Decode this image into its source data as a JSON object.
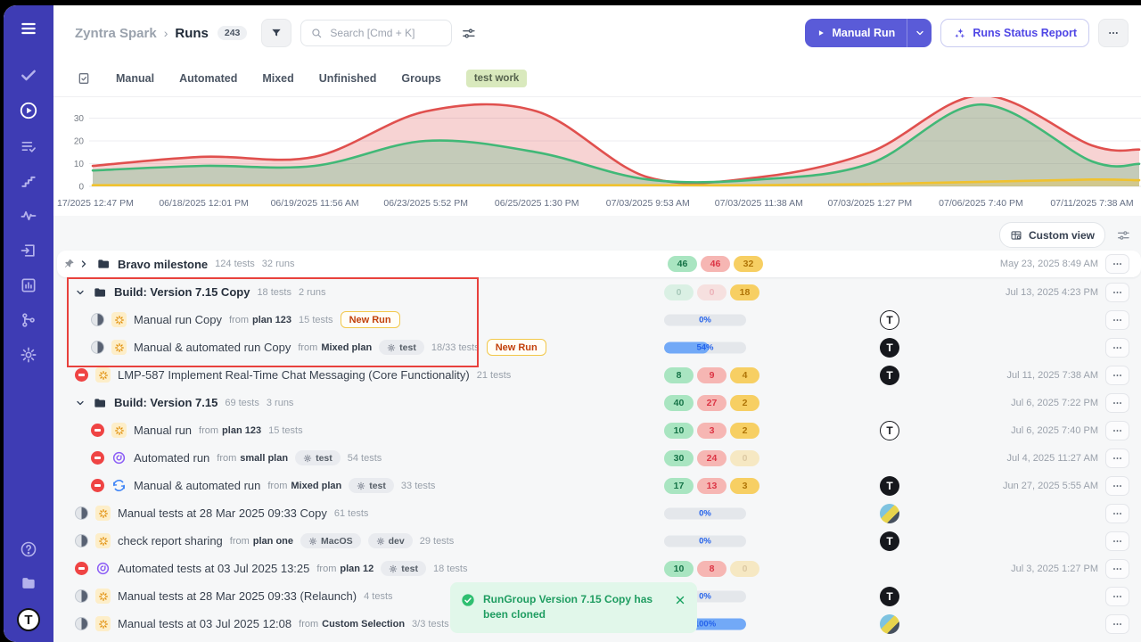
{
  "labels": {
    "from": "from"
  },
  "colors": {
    "sidebar": "#3e3cb4",
    "accent": "#5a5bd8",
    "annotation_red": "#e8413c",
    "toast_green": "#1f9d61",
    "badge_passed_bg": "#a9e5c1",
    "badge_failed_bg": "#f6b6b3",
    "badge_skipped_bg": "#f7cf63",
    "progress_blue": "#72a9f7"
  },
  "sidebar": {
    "top_icon": "menu",
    "nav_icons": [
      "check",
      "play-circle",
      "list-check",
      "steps",
      "pulse",
      "import",
      "chart",
      "branch",
      "gear"
    ],
    "active_icon": "play-circle",
    "bottom_icons": [
      "help",
      "docs"
    ],
    "logo_letter": "T"
  },
  "header": {
    "project": "Zyntra Spark",
    "separator": "›",
    "page_title": "Runs",
    "count": "243",
    "search_placeholder": "Search [Cmd + K]",
    "manual_run_label": "Manual Run",
    "report_label": "Runs Status Report"
  },
  "tabs": {
    "items": [
      "Manual",
      "Automated",
      "Mixed",
      "Unfinished",
      "Groups"
    ],
    "active_chip": "test work"
  },
  "toolbar": {
    "custom_view_label": "Custom view"
  },
  "chart_data": {
    "type": "area",
    "x": [
      "17/2025 12:47 PM",
      "06/18/2025 12:01 PM",
      "06/19/2025 11:56 AM",
      "06/23/2025 5:52 PM",
      "06/25/2025 1:30 PM",
      "07/03/2025 9:53 AM",
      "07/03/2025 11:38 AM",
      "07/03/2025 1:27 PM",
      "07/06/2025 7:40 PM",
      "07/11/2025 7:38 AM"
    ],
    "yticks": [
      0,
      10,
      20,
      30
    ],
    "ylim": [
      0,
      35
    ],
    "grid": true,
    "legend": "none",
    "series": [
      {
        "name": "failed",
        "color": "#e0504e",
        "fill": "rgba(224,80,78,0.25)",
        "values": [
          9,
          13,
          13,
          33,
          33,
          4,
          4,
          15,
          40,
          18
        ]
      },
      {
        "name": "passed",
        "color": "#41b877",
        "fill": "rgba(65,184,119,0.28)",
        "values": [
          7,
          9,
          9,
          20,
          15,
          3,
          3,
          10,
          36,
          11
        ]
      },
      {
        "name": "skipped",
        "color": "#f0c22e",
        "fill": "rgba(240,194,46,0.30)",
        "values": [
          0.5,
          0.5,
          0.5,
          0.5,
          0.5,
          0.5,
          0.5,
          1,
          2,
          3
        ]
      }
    ]
  },
  "rows": [
    {
      "kind": "group",
      "card": true,
      "pinned": true,
      "chevron": "right",
      "icon": "folder",
      "title": "Bravo milestone",
      "meta": [
        "124 tests",
        "32 runs"
      ],
      "stats": {
        "type": "badges",
        "values": [
          46,
          46,
          32
        ]
      },
      "date": "May 23, 2025 8:49 AM"
    },
    {
      "kind": "group",
      "chevron": "down",
      "icon": "folder",
      "title": "Build: Version 7.15 Copy",
      "meta": [
        "18 tests",
        "2 runs"
      ],
      "stats": {
        "type": "badges",
        "values": [
          0,
          0,
          18
        ]
      },
      "date": "Jul 13, 2025 4:23 PM"
    },
    {
      "kind": "run",
      "indent": 1,
      "status": "half",
      "icon": "burst",
      "title": "Manual run Copy",
      "plan": "plan 123",
      "meta": [
        "15 tests"
      ],
      "new_run": "New Run",
      "stats": {
        "type": "progress",
        "value": 0
      },
      "avatar": "t-outline"
    },
    {
      "kind": "run",
      "indent": 1,
      "status": "half",
      "icon": "burst",
      "title": "Manual & automated run Copy",
      "plan": "Mixed plan",
      "tags": [
        "test"
      ],
      "meta": [
        "18/33 tests"
      ],
      "new_run": "New Run",
      "stats": {
        "type": "progress",
        "value": 54
      },
      "avatar": "t-dark"
    },
    {
      "kind": "run",
      "status": "stopped",
      "icon": "burst",
      "title": "LMP-587 Implement Real-Time Chat Messaging (Core Functionality)",
      "meta": [
        "21 tests"
      ],
      "stats": {
        "type": "badges",
        "values": [
          8,
          9,
          4
        ]
      },
      "avatar": "t-dark",
      "date": "Jul 11, 2025 7:38 AM"
    },
    {
      "kind": "group",
      "chevron": "down",
      "icon": "folder",
      "title": "Build: Version 7.15",
      "meta": [
        "69 tests",
        "3 runs"
      ],
      "stats": {
        "type": "badges",
        "values": [
          40,
          27,
          2
        ]
      },
      "date": "Jul 6, 2025 7:22 PM"
    },
    {
      "kind": "run",
      "indent": 1,
      "status": "stopped",
      "icon": "burst",
      "title": "Manual run",
      "plan": "plan 123",
      "meta": [
        "15 tests"
      ],
      "stats": {
        "type": "badges",
        "values": [
          10,
          3,
          2
        ]
      },
      "avatar": "t-outline",
      "date": "Jul 6, 2025 7:40 PM"
    },
    {
      "kind": "run",
      "indent": 1,
      "status": "stopped",
      "icon": "auto",
      "title": "Automated run",
      "plan": "small plan",
      "tags": [
        "test"
      ],
      "meta": [
        "54 tests"
      ],
      "stats": {
        "type": "badges",
        "values": [
          30,
          24,
          0
        ]
      },
      "date": "Jul 4, 2025 11:27 AM"
    },
    {
      "kind": "run",
      "indent": 1,
      "status": "stopped",
      "icon": "mixed",
      "title": "Manual & automated run",
      "plan": "Mixed plan",
      "tags": [
        "test"
      ],
      "meta": [
        "33 tests"
      ],
      "stats": {
        "type": "badges",
        "values": [
          17,
          13,
          3
        ]
      },
      "avatar": "t-dark",
      "date": "Jun 27, 2025 5:55 AM"
    },
    {
      "kind": "run",
      "status": "half",
      "icon": "burst",
      "title": "Manual tests at 28 Mar 2025 09:33 Copy",
      "meta": [
        "61 tests"
      ],
      "stats": {
        "type": "progress",
        "value": 0
      },
      "avatar": "photo"
    },
    {
      "kind": "run",
      "status": "half",
      "icon": "burst",
      "title": "check report sharing",
      "plan": "plan one",
      "tags": [
        "MacOS",
        "dev"
      ],
      "meta": [
        "29 tests"
      ],
      "stats": {
        "type": "progress",
        "value": 0
      },
      "avatar": "t-dark"
    },
    {
      "kind": "run",
      "status": "stopped",
      "icon": "auto",
      "title": "Automated tests at 03 Jul 2025 13:25",
      "plan": "plan 12",
      "tags": [
        "test"
      ],
      "meta": [
        "18 tests"
      ],
      "stats": {
        "type": "badges",
        "values": [
          10,
          8,
          0
        ]
      },
      "date": "Jul 3, 2025 1:27 PM"
    },
    {
      "kind": "run",
      "status": "half",
      "icon": "burst",
      "title": "Manual tests at 28 Mar 2025 09:33 (Relaunch)",
      "meta": [
        "4 tests"
      ],
      "stats": {
        "type": "progress",
        "value": 0
      },
      "avatar": "t-dark"
    },
    {
      "kind": "run",
      "status": "half",
      "icon": "burst",
      "title": "Manual tests at 03 Jul 2025 12:08",
      "plan": "Custom Selection",
      "meta": [
        "3/3 tests"
      ],
      "stats": {
        "type": "progress",
        "value": 100
      },
      "avatar": "photo"
    }
  ],
  "toast": {
    "message": "RunGroup Version 7.15 Copy has been cloned"
  }
}
